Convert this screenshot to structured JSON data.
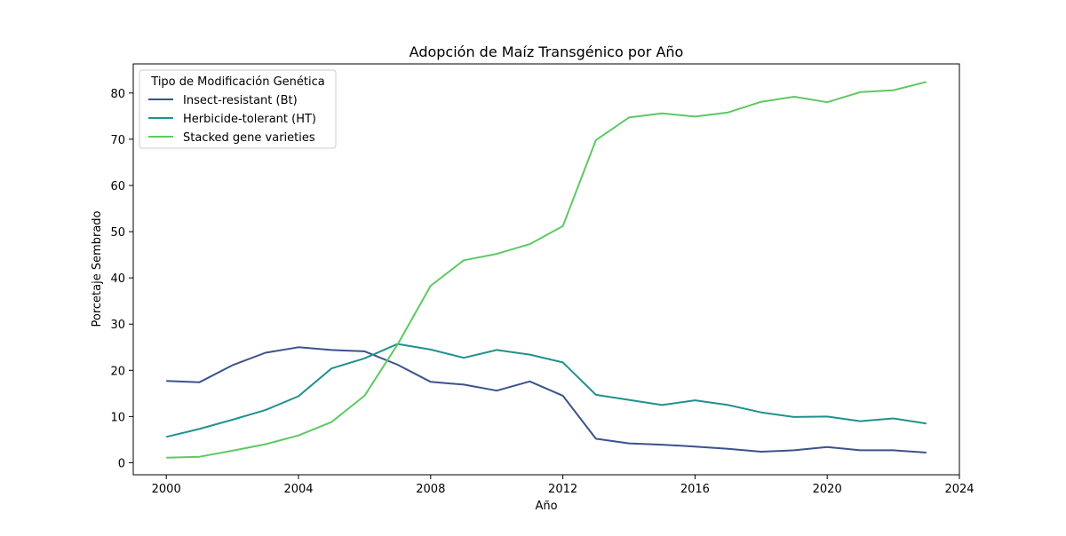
{
  "chart_data": {
    "type": "line",
    "title": "Adopción de Maíz Transgénico por Año",
    "xlabel": "Año",
    "ylabel": "Porcetaje Sembrado",
    "xlim": [
      1999,
      2024
    ],
    "ylim": [
      -2.6,
      86.3
    ],
    "x_ticks": [
      2000,
      2004,
      2008,
      2012,
      2016,
      2020,
      2024
    ],
    "y_ticks": [
      0,
      10,
      20,
      30,
      40,
      50,
      60,
      70,
      80
    ],
    "grid": false,
    "legend": {
      "title": "Tipo de Modificación Genética",
      "position": "top-left"
    },
    "x": [
      2000,
      2001,
      2002,
      2003,
      2004,
      2005,
      2006,
      2007,
      2008,
      2009,
      2010,
      2011,
      2012,
      2013,
      2014,
      2015,
      2016,
      2017,
      2018,
      2019,
      2020,
      2021,
      2022,
      2023
    ],
    "series": [
      {
        "name": "Insect-resistant (Bt)",
        "color": "#3b528b",
        "values": [
          17.7,
          17.4,
          21.1,
          23.8,
          25.0,
          24.4,
          24.1,
          21.2,
          17.5,
          16.9,
          15.6,
          17.6,
          14.5,
          5.2,
          4.2,
          3.9,
          3.5,
          3.0,
          2.4,
          2.7,
          3.4,
          2.7,
          2.7,
          2.2
        ]
      },
      {
        "name": "Herbicide-tolerant (HT)",
        "color": "#21918c",
        "values": [
          5.6,
          7.3,
          9.3,
          11.4,
          14.4,
          20.4,
          22.6,
          25.7,
          24.5,
          22.7,
          24.4,
          23.4,
          21.7,
          14.7,
          13.6,
          12.5,
          13.5,
          12.5,
          10.9,
          9.9,
          10.0,
          9.0,
          9.6,
          8.5
        ]
      },
      {
        "name": "Stacked gene varieties",
        "color": "#5ec962",
        "values": [
          1.1,
          1.3,
          2.6,
          4.0,
          5.9,
          8.8,
          14.5,
          25.6,
          38.3,
          43.8,
          45.2,
          47.3,
          51.2,
          69.8,
          74.7,
          75.6,
          74.9,
          75.8,
          78.1,
          79.2,
          78.0,
          80.2,
          80.6,
          82.4
        ]
      }
    ]
  }
}
